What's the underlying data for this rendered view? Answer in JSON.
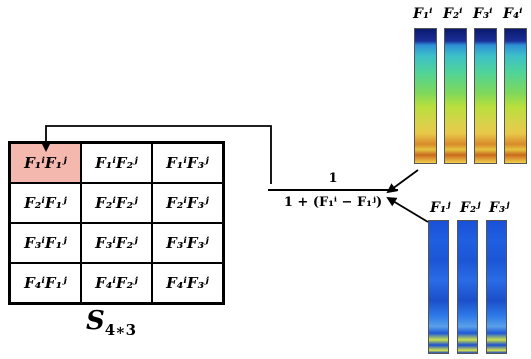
{
  "matrix": {
    "cells": [
      [
        "F₁ⁱF₁ʲ",
        "F₁ⁱF₂ʲ",
        "F₁ⁱF₃ʲ"
      ],
      [
        "F₂ⁱF₁ʲ",
        "F₂ⁱF₂ʲ",
        "F₂ⁱF₃ʲ"
      ],
      [
        "F₃ⁱF₁ʲ",
        "F₃ⁱF₂ʲ",
        "F₃ⁱF₃ʲ"
      ],
      [
        "F₄ⁱF₁ʲ",
        "F₄ⁱF₂ʲ",
        "F₄ⁱF₃ʲ"
      ]
    ],
    "label_main": "S",
    "label_sub": "4∗3",
    "highlight_color": "#f4b8ae"
  },
  "formula": {
    "numerator": "1",
    "denominator": "1 + (F₁ⁱ − F₁ʲ)"
  },
  "top_labels": [
    "F₁ⁱ",
    "F₂ⁱ",
    "F₃ⁱ",
    "F₄ⁱ"
  ],
  "bottom_labels": [
    "F₁ʲ",
    "F₂ʲ",
    "F₃ʲ"
  ]
}
